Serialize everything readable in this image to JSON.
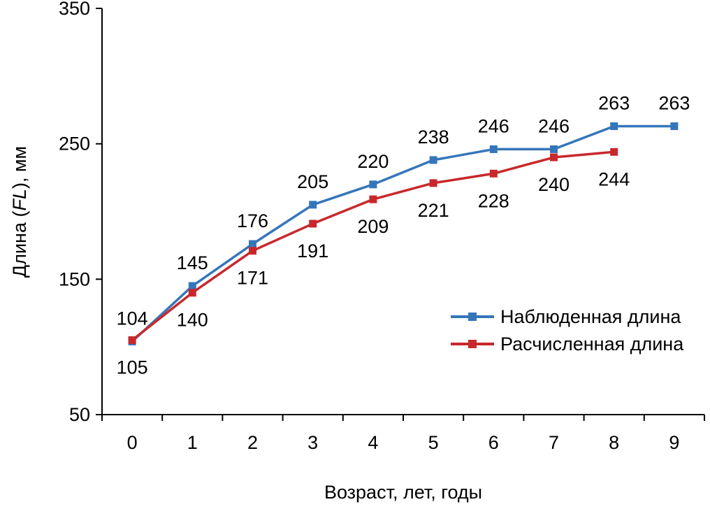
{
  "chart_data": {
    "type": "line",
    "x": [
      0,
      1,
      2,
      3,
      4,
      5,
      6,
      7,
      8,
      9
    ],
    "xlabel": "Возраст, лет, годы",
    "ylabel": "Длина (FL), мм",
    "ylabel_parts": [
      "Длина (",
      "FL",
      "), мм"
    ],
    "ylim": [
      50,
      350
    ],
    "yticks": [
      50,
      150,
      250,
      350
    ],
    "grid": false,
    "legend_position": "right-middle",
    "series": [
      {
        "name": "Наблюденная длина",
        "color": "#3576BB",
        "marker": "square",
        "label_position": "above",
        "values": [
          104,
          145,
          176,
          205,
          220,
          238,
          246,
          246,
          263,
          263
        ]
      },
      {
        "name": "Расчисленная длина",
        "color": "#C8282C",
        "marker": "square",
        "label_position": "below",
        "values": [
          105,
          140,
          171,
          191,
          209,
          221,
          228,
          240,
          244
        ]
      }
    ]
  }
}
